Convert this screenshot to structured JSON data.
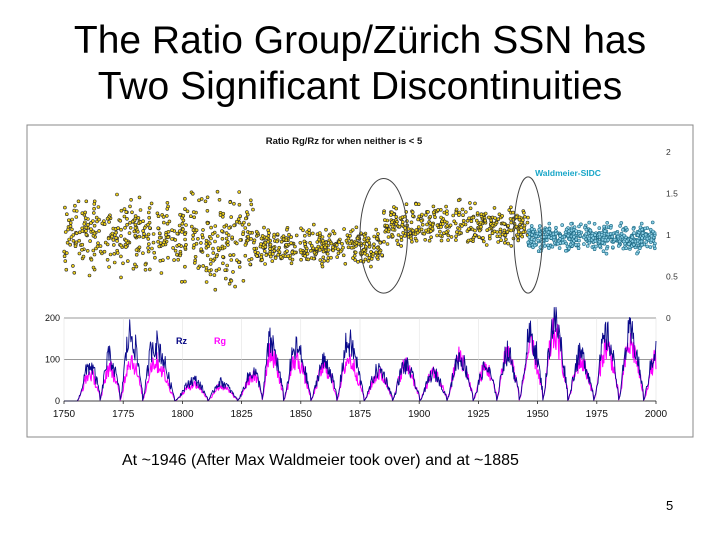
{
  "slide": {
    "title_line1": "The Ratio Group/Zürich SSN has",
    "title_line2": "Two Significant Discontinuities",
    "caption": "At ~1946 (After Max Waldmeier took over) and at ~1885",
    "page_number": "5"
  },
  "colors": {
    "ratio_points_early": "#2a2a2a",
    "ratio_points_early_fill": "#f0d21a",
    "ratio_points_sidc": "#1d6b86",
    "rz_line": "#0a0a8a",
    "rg_line": "#ff00ff",
    "ellipse": "#444444",
    "axis": "#222222",
    "waldmeier_label": "#18a6c8",
    "rg_label": "#ff00ff",
    "rz_label": "#000080"
  },
  "chart_data": [
    {
      "type": "scatter",
      "title": "Ratio Rg/Rz for when neither is < 5",
      "annotation": "Waldmeier-SIDC",
      "x_range": [
        1750,
        2000
      ],
      "ylim": [
        0,
        2
      ],
      "yticks": [
        "2",
        "1.5",
        "1",
        "0.5",
        "0"
      ],
      "grid": false,
      "series": [
        {
          "name": "",
          "segments": [
            {
              "x0": 1750,
              "x1": 1795,
              "mean": 1.0,
              "spread": 0.38
            },
            {
              "x0": 1795,
              "x1": 1830,
              "mean": 0.96,
              "spread": 0.45
            },
            {
              "x0": 1830,
              "x1": 1885,
              "mean": 0.85,
              "spread": 0.2
            },
            {
              "x0": 1885,
              "x1": 1946,
              "mean": 1.12,
              "spread": 0.22
            }
          ]
        },
        {
          "name": "Waldmeier-SIDC",
          "segments": [
            {
              "x0": 1946,
              "x1": 2000,
              "mean": 0.97,
              "spread": 0.14
            }
          ]
        }
      ],
      "highlights": [
        {
          "x_center": 1885,
          "x_halfwidth": 10,
          "y_top": 1.68,
          "y_bottom": 0.3
        },
        {
          "x_center": 1946,
          "x_halfwidth": 6,
          "y_top": 1.7,
          "y_bottom": 0.3
        }
      ]
    },
    {
      "type": "line",
      "x_range": [
        1750,
        2000
      ],
      "ylim": [
        0,
        200
      ],
      "yticks": [
        "200",
        "100",
        "0"
      ],
      "xticks": [
        "1750",
        "1775",
        "1800",
        "1825",
        "1850",
        "1875",
        "1900",
        "1925",
        "1950",
        "1975",
        "2000"
      ],
      "grid": true,
      "legend": "top-left",
      "series": [
        {
          "name": "Rz",
          "cycle_peaks": [
            [
              1761,
              85
            ],
            [
              1769,
              105
            ],
            [
              1778,
              160
            ],
            [
              1788,
              140
            ],
            [
              1805,
              50
            ],
            [
              1816,
              45
            ],
            [
              1830,
              70
            ],
            [
              1837,
              140
            ],
            [
              1848,
              125
            ],
            [
              1860,
              95
            ],
            [
              1870,
              140
            ],
            [
              1883,
              75
            ],
            [
              1894,
              85
            ],
            [
              1906,
              65
            ],
            [
              1917,
              105
            ],
            [
              1928,
              80
            ],
            [
              1937,
              115
            ],
            [
              1947,
              155
            ],
            [
              1957,
              190
            ],
            [
              1968,
              110
            ],
            [
              1979,
              155
            ],
            [
              1989,
              160
            ],
            [
              2000,
              120
            ]
          ]
        },
        {
          "name": "Rg",
          "cycle_peaks": [
            [
              1761,
              65
            ],
            [
              1769,
              80
            ],
            [
              1778,
              100
            ],
            [
              1788,
              95
            ],
            [
              1805,
              40
            ],
            [
              1816,
              35
            ],
            [
              1830,
              60
            ],
            [
              1837,
              120
            ],
            [
              1848,
              100
            ],
            [
              1860,
              80
            ],
            [
              1870,
              100
            ],
            [
              1883,
              65
            ],
            [
              1894,
              85
            ],
            [
              1906,
              65
            ],
            [
              1917,
              105
            ],
            [
              1928,
              80
            ],
            [
              1937,
              115
            ],
            [
              1947,
              125
            ],
            [
              1957,
              160
            ],
            [
              1968,
              95
            ],
            [
              1979,
              130
            ],
            [
              1989,
              135
            ],
            [
              2000,
              100
            ]
          ]
        }
      ]
    }
  ]
}
